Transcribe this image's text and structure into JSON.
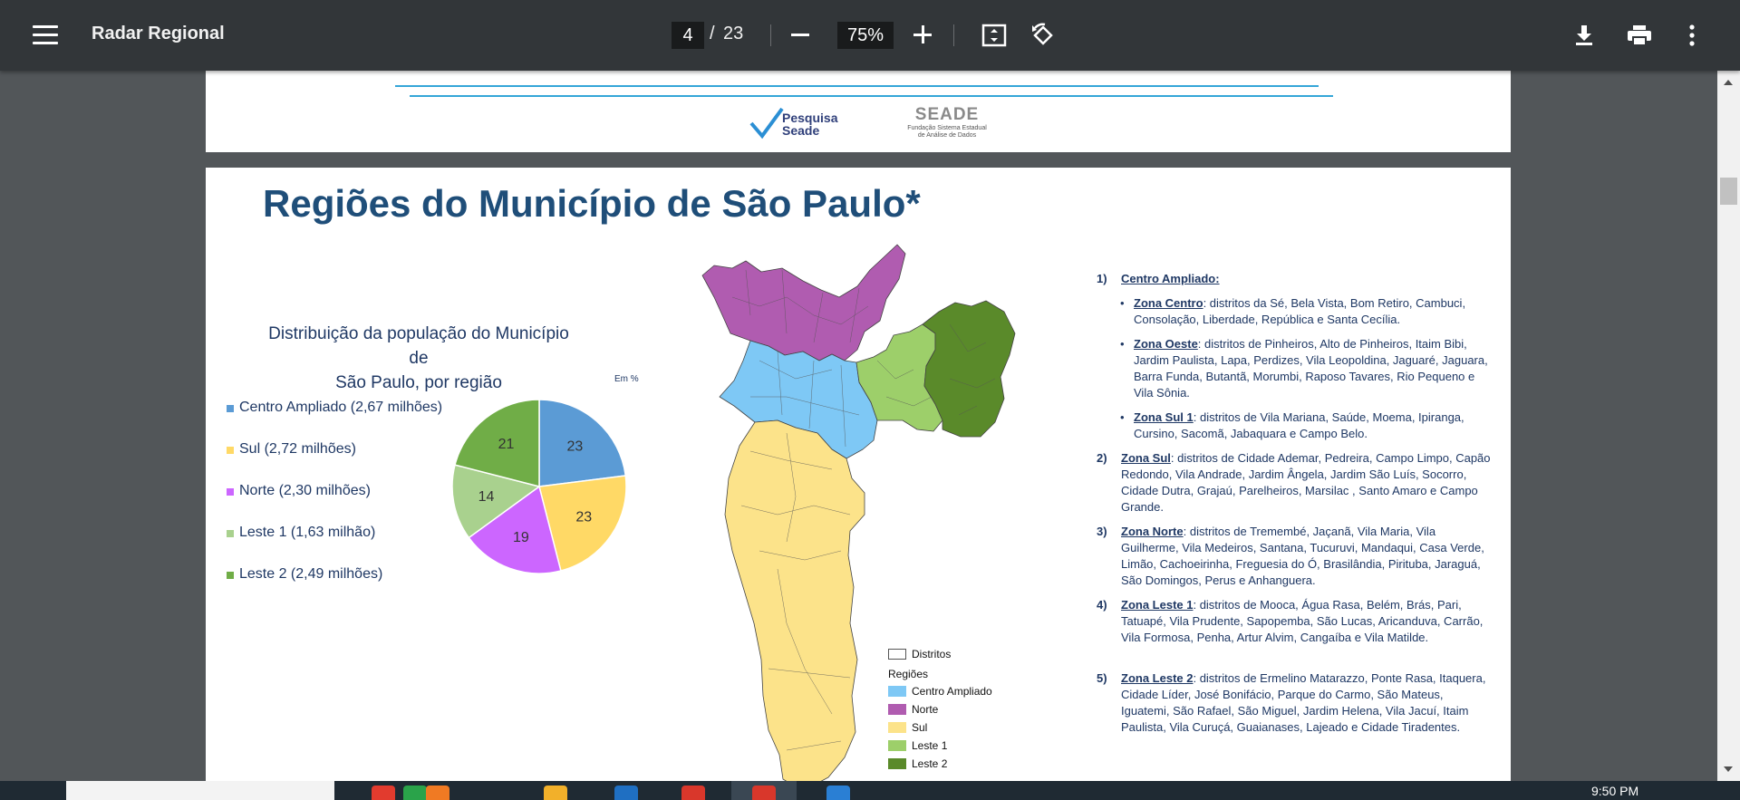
{
  "viewer": {
    "title": "Radar Regional",
    "page_current": "4",
    "page_separator": "/",
    "page_total": "23",
    "zoom": "75%"
  },
  "header_page": {
    "logo_pesquisa_line1": "Pesquisa",
    "logo_pesquisa_line2": "Seade",
    "logo_seade_name": "SEADE",
    "logo_seade_sub1": "Fundação Sistema Estadual",
    "logo_seade_sub2": "de Análise de Dados"
  },
  "slide": {
    "title": "Regiões do Município de São Paulo*"
  },
  "chart_data": {
    "type": "pie",
    "title": "Distribuição da população do Município de São Paulo, por região",
    "title_line1": "Distribuição da população do Município de",
    "title_line2": "São Paulo, por região",
    "unit": "Em %",
    "legend_position": "left",
    "categories": [
      "Centro Ampliado (2,67 milhões)",
      "Sul (2,72 milhões)",
      "Norte (2,30 milhões)",
      "Leste 1 (1,63 milhão)",
      "Leste 2 (2,49 milhões)"
    ],
    "values": [
      23,
      23,
      19,
      14,
      21
    ],
    "colors": [
      "#5b9bd5",
      "#ffd966",
      "#cc66ff",
      "#a9d18e",
      "#70ad47"
    ]
  },
  "map_legend": {
    "districts_label": "Distritos",
    "regions_label": "Regiões",
    "items": [
      {
        "label": "Centro Ampliado",
        "color": "#7ec8f5"
      },
      {
        "label": "Norte",
        "color": "#b05cb0"
      },
      {
        "label": "Sul",
        "color": "#fce38a"
      },
      {
        "label": "Leste 1",
        "color": "#9dcf6a"
      },
      {
        "label": "Leste 2",
        "color": "#5a8a2a"
      }
    ]
  },
  "regions_text": {
    "item1_num": "1)",
    "item1_title": "Centro Ampliado:",
    "sub1_title": "Zona Centro",
    "sub1_text": ": distritos da Sé, Bela Vista, Bom Retiro, Cambuci, Consolação, Liberdade, República e Santa Cecília.",
    "sub2_title": "Zona Oeste",
    "sub2_text": ": distritos de Pinheiros, Alto de Pinheiros, Itaim Bibi, Jardim Paulista, Lapa, Perdizes, Vila Leopoldina, Jaguaré, Jaguara, Barra Funda, Butantã, Morumbi, Raposo Tavares, Rio Pequeno e Vila Sônia.",
    "sub3_title": "Zona Sul 1",
    "sub3_text": ": distritos de Vila Mariana, Saúde, Moema, Ipiranga, Cursino, Sacomã, Jabaquara e Campo Belo.",
    "item2_num": "2)",
    "item2_title": "Zona Sul",
    "item2_text": ": distritos de Cidade Ademar, Pedreira, Campo Limpo, Capão Redondo, Vila Andrade, Jardim Ângela, Jardim São Luís, Socorro, Cidade Dutra, Grajaú, Parelheiros, Marsilac , Santo Amaro e Campo Grande.",
    "item3_num": "3)",
    "item3_title": "Zona Norte",
    "item3_text": ": distritos de Tremembé, Jaçanã, Vila Maria, Vila Guilherme, Vila Medeiros, Santana, Tucuruvi, Mandaqui, Casa Verde, Limão, Cachoeirinha, Freguesia do Ó, Brasilândia, Pirituba, Jaraguá, São Domingos, Perus e Anhanguera.",
    "item4_num": "4)",
    "item4_title": "Zona Leste 1",
    "item4_text": ": distritos de Mooca, Água Rasa, Belém, Brás, Pari, Tatuapé, Vila Prudente, Sapopemba, São Lucas, Aricanduva, Carrão, Vila Formosa, Penha, Artur Alvim, Cangaíba e Vila Matilde.",
    "item5_num": "5)",
    "item5_title": "Zona Leste 2",
    "item5_text": ": distritos de Ermelino Matarazzo, Ponte Rasa, Itaquera, Cidade Líder, José Bonifácio, Parque do Carmo, São Mateus, Iguatemi, São Rafael, São Miguel, Jardim Helena, Vila Jacuí, Itaim Paulista, Vila Curuçá, Guaianases, Lajeado e Cidade Tiradentes.",
    "bullet": "•"
  },
  "taskbar": {
    "time": "9:50 PM"
  }
}
